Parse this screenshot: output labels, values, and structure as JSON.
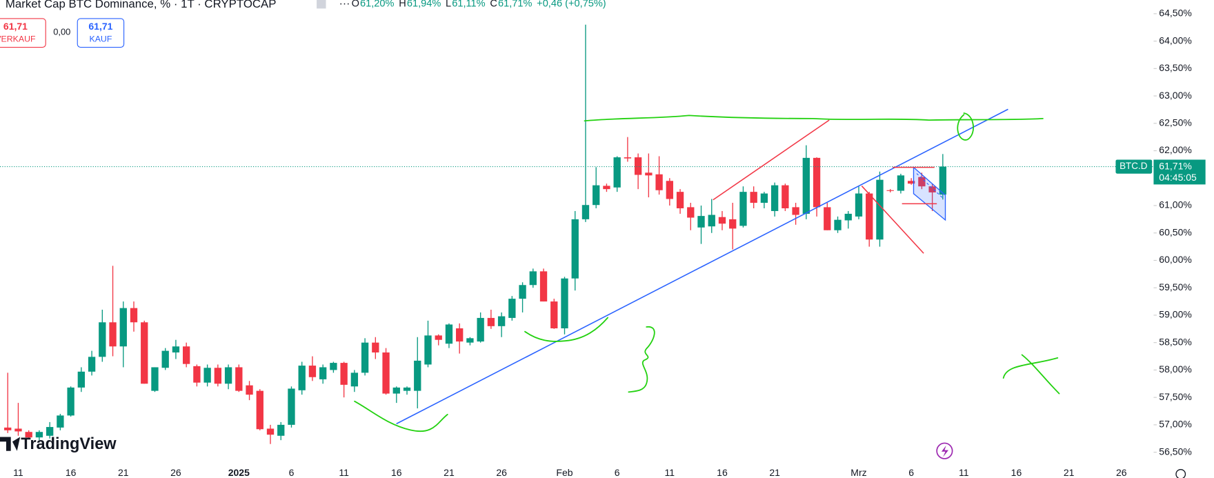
{
  "chart_data": {
    "type": "candlestick",
    "title": "Market Cap BTC Dominance, % · 1T · CRYPTOCAP",
    "ohlc_header": [
      {
        "key": "O",
        "value": "61,20%"
      },
      {
        "key": "H",
        "value": "61,94%"
      },
      {
        "key": "L",
        "value": "61,11%"
      },
      {
        "key": "C",
        "value": "61,71%"
      }
    ],
    "change": "+0,46 (+0,75%)",
    "sell_price": "61,71",
    "sell_label": "VERKAUF",
    "spread": "0,00",
    "buy_price": "61,71",
    "buy_label": "KAUF",
    "symbol": "BTC.D",
    "last_price_label": "61,71%",
    "countdown": "04:45:05",
    "logo": "TradingView",
    "up_color": "#089981",
    "down_color": "#f23645",
    "grid": false,
    "categories": [
      null,
      "11",
      null,
      null,
      null,
      null,
      "16",
      null,
      null,
      null,
      null,
      "21",
      null,
      null,
      null,
      null,
      "26",
      null,
      null,
      null,
      null,
      null,
      "2025",
      null,
      null,
      null,
      null,
      "6",
      null,
      null,
      null,
      null,
      "11",
      null,
      null,
      null,
      null,
      "16",
      null,
      null,
      null,
      null,
      "21",
      null,
      null,
      null,
      null,
      "26",
      null,
      null,
      null,
      null,
      null,
      "Feb",
      null,
      null,
      null,
      null,
      "6",
      null,
      null,
      null,
      null,
      "11",
      null,
      null,
      null,
      null,
      "16",
      null,
      null,
      null,
      null,
      "21",
      null,
      null,
      null,
      null,
      null,
      null,
      null,
      "Mrz",
      null,
      null,
      null,
      null,
      "6",
      null,
      null,
      null,
      null,
      "11",
      null,
      null,
      null,
      null,
      "16",
      null,
      null,
      null,
      null,
      "21",
      null,
      null,
      null,
      null,
      "26"
    ],
    "open": [
      56.95,
      56.93,
      56.87,
      56.77,
      56.8,
      56.95,
      57.17,
      57.68,
      57.97,
      58.24,
      58.87,
      58.43,
      59.13,
      58.87,
      57.62,
      58.04,
      58.32,
      58.43,
      58.07,
      57.77,
      58.04,
      57.75,
      58.05,
      57.72,
      57.62,
      56.93,
      56.8,
      57.0,
      57.63,
      58.08,
      57.83,
      58.0,
      58.13,
      57.7,
      57.95,
      58.5,
      58.32,
      57.57,
      57.62,
      57.62,
      58.1,
      58.63,
      58.48,
      58.76,
      58.5,
      58.52,
      58.95,
      58.8,
      58.95,
      59.3,
      59.55,
      59.8,
      59.25,
      58.76,
      59.67,
      60.75,
      61.01,
      61.36,
      61.33,
      61.88,
      61.88,
      61.6,
      61.57,
      61.45,
      61.25,
      60.97,
      60.6,
      60.62,
      60.79,
      60.75,
      60.63,
      61.25,
      61.05,
      60.9,
      61.37,
      60.97,
      60.85,
      61.87,
      60.97,
      60.55,
      60.73,
      60.8,
      61.22,
      60.38,
      61.28,
      61.27,
      61.45,
      61.52,
      61.35,
      61.2,
      null,
      null,
      null,
      null,
      null,
      null,
      null,
      null,
      null,
      null,
      null,
      null,
      null,
      null,
      null,
      null,
      null
    ],
    "high": [
      57.95,
      57.4,
      56.9,
      56.9,
      57.05,
      57.2,
      57.7,
      58.05,
      58.35,
      59.1,
      59.9,
      59.25,
      59.25,
      58.9,
      58.05,
      58.4,
      58.55,
      58.5,
      58.1,
      58.1,
      58.1,
      58.1,
      58.1,
      57.8,
      57.65,
      57.0,
      57.05,
      57.7,
      58.15,
      58.25,
      58.1,
      58.15,
      58.15,
      58.0,
      58.58,
      58.6,
      58.4,
      57.7,
      57.7,
      58.6,
      58.9,
      58.65,
      58.85,
      58.85,
      58.6,
      59.05,
      59.1,
      59.05,
      59.35,
      59.6,
      59.85,
      59.85,
      59.3,
      59.7,
      60.9,
      64.3,
      61.7,
      61.4,
      61.9,
      62.25,
      61.95,
      61.95,
      61.9,
      61.5,
      61.3,
      61.05,
      61.0,
      61.12,
      60.9,
      61.05,
      61.35,
      61.35,
      61.25,
      61.42,
      61.4,
      61.05,
      62.1,
      61.88,
      61.05,
      60.8,
      60.9,
      61.35,
      61.25,
      61.62,
      61.3,
      61.58,
      61.5,
      61.6,
      61.4,
      61.94,
      null,
      null,
      null,
      null,
      null,
      null,
      null,
      null,
      null,
      null,
      null,
      null,
      null,
      null,
      null,
      null,
      null
    ],
    "low": [
      56.85,
      56.8,
      56.75,
      56.72,
      56.75,
      56.9,
      57.15,
      57.6,
      57.9,
      58.15,
      58.25,
      58.05,
      58.7,
      57.75,
      57.6,
      58.0,
      58.2,
      58.05,
      57.7,
      57.7,
      57.7,
      57.65,
      57.6,
      57.45,
      56.9,
      56.65,
      56.72,
      56.95,
      57.55,
      57.8,
      57.75,
      57.95,
      57.5,
      57.6,
      57.9,
      58.2,
      57.55,
      57.4,
      57.55,
      57.3,
      58.05,
      58.45,
      58.4,
      58.3,
      58.45,
      58.5,
      58.75,
      58.6,
      58.9,
      59.05,
      59.5,
      59.25,
      58.75,
      58.65,
      59.45,
      60.7,
      60.95,
      61.25,
      61.25,
      61.8,
      61.3,
      61.15,
      61.2,
      61.0,
      60.85,
      60.55,
      60.3,
      60.5,
      60.55,
      60.2,
      60.6,
      60.95,
      60.95,
      60.8,
      60.9,
      60.65,
      60.75,
      60.8,
      60.55,
      60.5,
      60.58,
      60.75,
      60.25,
      60.25,
      61.24,
      61.22,
      61.38,
      61.3,
      60.9,
      61.11,
      null,
      null,
      null,
      null,
      null,
      null,
      null,
      null,
      null,
      null,
      null,
      null,
      null,
      null,
      null,
      null,
      null
    ],
    "close": [
      56.9,
      56.88,
      56.77,
      56.87,
      56.96,
      57.17,
      57.68,
      57.97,
      58.24,
      58.87,
      58.43,
      59.13,
      58.87,
      57.75,
      58.05,
      58.35,
      58.43,
      58.11,
      57.77,
      58.04,
      57.75,
      58.05,
      57.62,
      57.55,
      56.92,
      56.82,
      57.0,
      57.66,
      58.08,
      57.87,
      58.05,
      58.13,
      57.73,
      57.95,
      58.5,
      58.32,
      57.57,
      57.68,
      57.68,
      58.17,
      58.63,
      58.55,
      58.83,
      58.52,
      58.58,
      58.95,
      58.8,
      58.98,
      59.3,
      59.55,
      59.8,
      59.25,
      58.76,
      59.67,
      60.75,
      61.01,
      61.37,
      61.3,
      61.88,
      61.86,
      61.56,
      61.55,
      61.28,
      61.12,
      60.95,
      60.78,
      60.81,
      60.83,
      60.67,
      60.58,
      61.25,
      61.05,
      61.22,
      61.37,
      60.95,
      60.83,
      61.87,
      60.97,
      60.55,
      60.74,
      60.85,
      61.22,
      60.38,
      61.47,
      61.27,
      61.55,
      61.4,
      61.35,
      61.24,
      61.71,
      null,
      null,
      null,
      null,
      null,
      null,
      null,
      null,
      null,
      null,
      null,
      null,
      null,
      null,
      null,
      null,
      null
    ],
    "ylim": [
      56.27,
      64.75
    ],
    "yticks": [
      {
        "value": 56.5,
        "label": "56,50%"
      },
      {
        "value": 57.0,
        "label": "57,00%"
      },
      {
        "value": 57.5,
        "label": "57,50%"
      },
      {
        "value": 58.0,
        "label": "58,00%"
      },
      {
        "value": 58.5,
        "label": "58,50%"
      },
      {
        "value": 59.0,
        "label": "59,00%"
      },
      {
        "value": 59.5,
        "label": "59,50%"
      },
      {
        "value": 60.0,
        "label": "60,00%"
      },
      {
        "value": 60.5,
        "label": "60,50%"
      },
      {
        "value": 61.0,
        "label": "61,00%"
      },
      {
        "value": 61.5,
        "label": "61,50%"
      },
      {
        "value": 62.0,
        "label": "62,00%"
      },
      {
        "value": 62.5,
        "label": "62,50%"
      },
      {
        "value": 63.0,
        "label": "63,00%"
      },
      {
        "value": 63.5,
        "label": "63,50%"
      },
      {
        "value": 64.0,
        "label": "64,00%"
      },
      {
        "value": 64.5,
        "label": "64,50%"
      }
    ]
  }
}
